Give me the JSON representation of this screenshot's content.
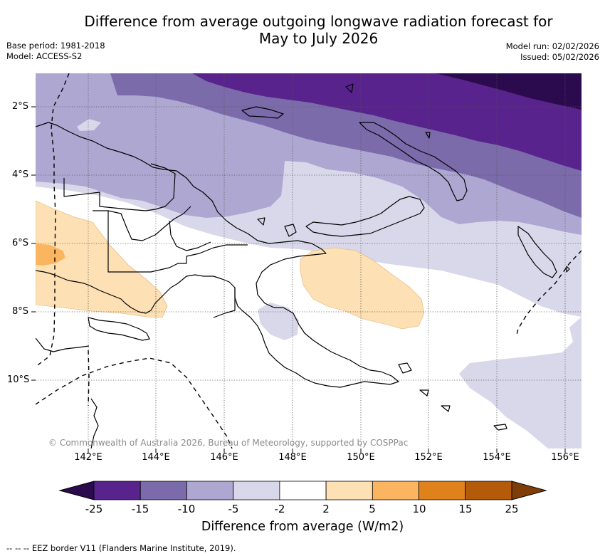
{
  "title": {
    "line1": "Difference from average outgoing longwave radiation forecast for",
    "line2": "May to July 2026"
  },
  "meta": {
    "base_period": "Base period: 1981-2018",
    "model": "Model: ACCESS-S2",
    "model_run": "Model run: 02/02/2026",
    "issued": "Issued: 05/02/2026"
  },
  "map": {
    "lat_ticks": [
      "2°S",
      "4°S",
      "6°S",
      "8°S",
      "10°S"
    ],
    "lon_ticks": [
      "142°E",
      "144°E",
      "146°E",
      "148°E",
      "150°E",
      "152°E",
      "154°E",
      "156°E"
    ],
    "copyright": "© Commonwealth of Australia 2026, Bureau of Meteorology, supported by COSPPac"
  },
  "colorbar": {
    "ticks": [
      "-25",
      "-15",
      "-10",
      "-5",
      "-2",
      "2",
      "5",
      "10",
      "15",
      "25"
    ],
    "colors": [
      "#2c0a4e",
      "#58238c",
      "#7c6bab",
      "#aea7d1",
      "#d8d8ea",
      "#ffffff",
      "#fde0b4",
      "#fbb561",
      "#e0821c",
      "#b35b0b",
      "#7f3d07"
    ],
    "label": "Difference from average (W/m2)"
  },
  "legend": {
    "eez": "--  --  -- EEZ border V11 (Flanders Marine Institute, 2019)."
  }
}
